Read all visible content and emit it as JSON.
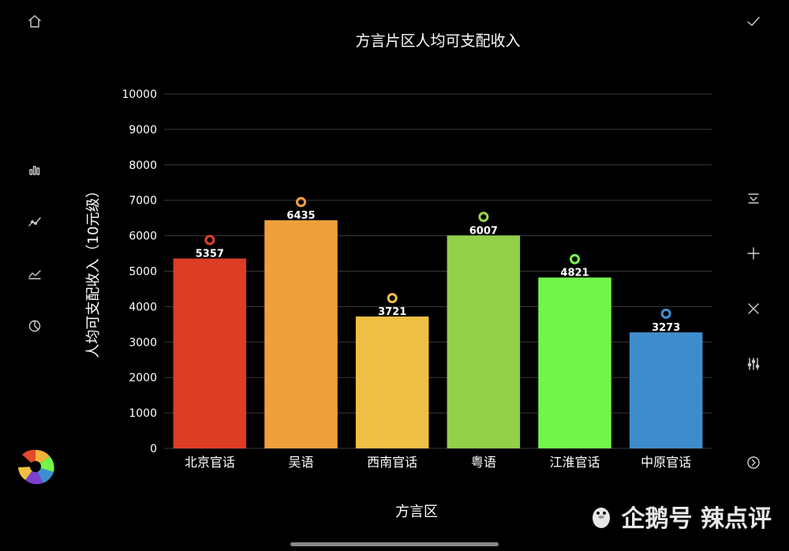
{
  "chart_data": {
    "type": "bar",
    "title": "方言片区人均可支配收入",
    "xlabel": "方言区",
    "ylabel": "人均可支配收入（10元级）",
    "ylim": [
      0,
      10000
    ],
    "yticks": [
      0,
      1000,
      2000,
      3000,
      4000,
      5000,
      6000,
      7000,
      8000,
      9000,
      10000
    ],
    "categories": [
      "北京官话",
      "吴语",
      "西南官话",
      "粤语",
      "江淮官话",
      "中原官话"
    ],
    "values": [
      5357,
      6435,
      3721,
      6007,
      4821,
      3273
    ],
    "marker_values": [
      5880,
      6950,
      4240,
      6530,
      5340,
      3800
    ],
    "colors": [
      "#dd3c25",
      "#f0a03a",
      "#f0c044",
      "#93d04a",
      "#72f64a",
      "#3f8ccc"
    ],
    "marker_colors": [
      "#e2402a",
      "#f5a33b",
      "#f4c243",
      "#9ad64b",
      "#79f74b",
      "#3e8fd2"
    ]
  },
  "watermark": {
    "text": "企鹅号 辣点评"
  },
  "icons": {
    "home": "home-icon",
    "check": "check-icon",
    "bar": "bar-chart-icon",
    "line": "line-chart-icon",
    "area": "area-chart-icon",
    "pie": "pie-chart-icon",
    "sort": "sort-icon",
    "add": "plus-icon",
    "close": "close-icon",
    "adjust": "sliders-icon",
    "next": "chevron-right-circle-icon"
  }
}
